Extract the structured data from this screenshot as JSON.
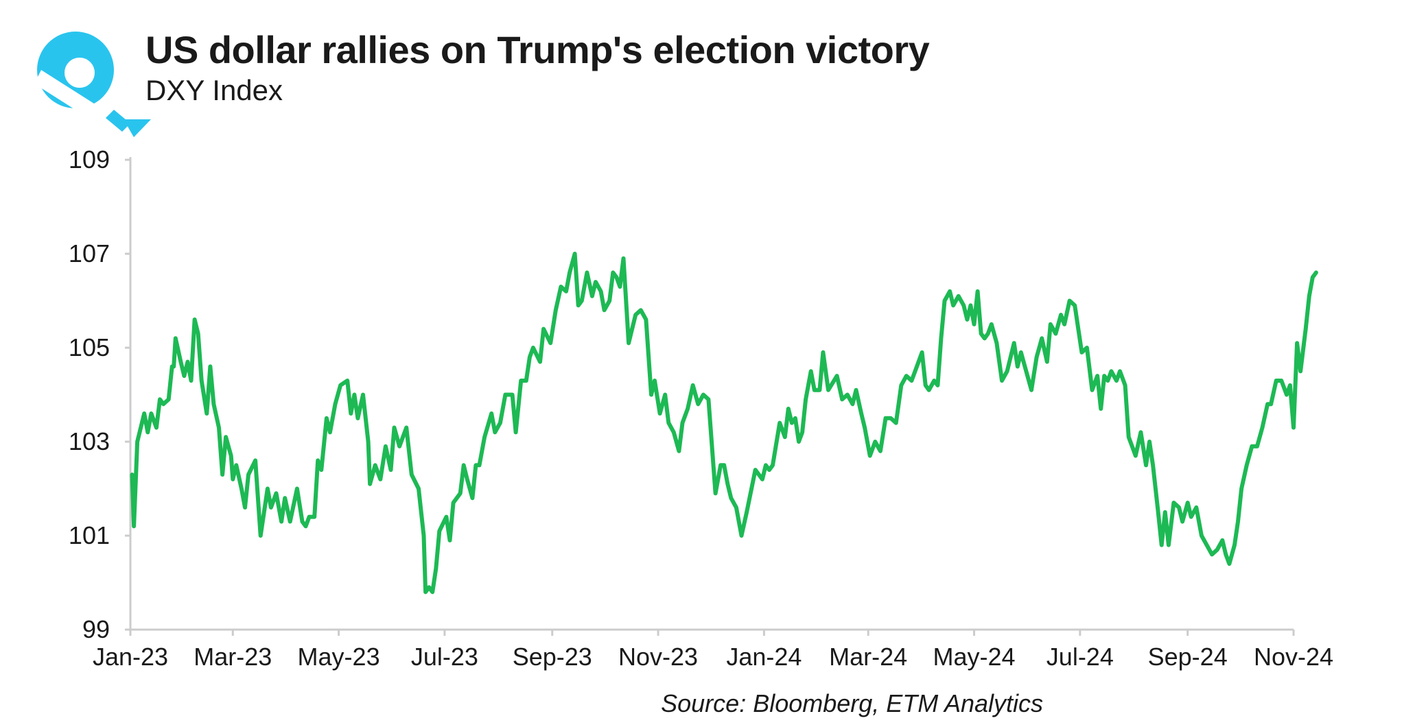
{
  "title": "US dollar rallies on Trump's election victory",
  "subtitle": "DXY Index",
  "source": "Source: Bloomberg, ETM Analytics",
  "colors": {
    "line": "#1db954",
    "axis": "#cccccc",
    "logo": "#29c4ee",
    "text": "#1a1a1a"
  },
  "logo": {
    "icon": "etm-logo-icon"
  },
  "chart_data": {
    "type": "line",
    "title": "US dollar rallies on Trump's election victory",
    "subtitle": "DXY Index",
    "ylabel": "",
    "xlabel": "",
    "ylim": [
      99,
      109
    ],
    "yticks": [
      99,
      101,
      103,
      105,
      107,
      109
    ],
    "xlim": [
      "2023-01-01",
      "2024-11-01"
    ],
    "xticks": [
      "2023-01-01",
      "2023-03-01",
      "2023-05-01",
      "2023-07-01",
      "2023-09-01",
      "2023-11-01",
      "2024-01-01",
      "2024-03-01",
      "2024-05-01",
      "2024-07-01",
      "2024-09-01",
      "2024-11-01"
    ],
    "xtick_labels": [
      "Jan-23",
      "Mar-23",
      "May-23",
      "Jul-23",
      "Sep-23",
      "Nov-23",
      "Jan-24",
      "Mar-24",
      "May-24",
      "Jul-24",
      "Sep-24",
      "Nov-24"
    ],
    "grid": false,
    "legend": "none",
    "series": [
      {
        "color": "#1db954",
        "points": [
          [
            "2023-01-02",
            102.3
          ],
          [
            "2023-01-03",
            101.2
          ],
          [
            "2023-01-05",
            103.0
          ],
          [
            "2023-01-09",
            103.6
          ],
          [
            "2023-01-11",
            103.2
          ],
          [
            "2023-01-13",
            103.6
          ],
          [
            "2023-01-16",
            103.3
          ],
          [
            "2023-01-18",
            103.9
          ],
          [
            "2023-01-20",
            103.8
          ],
          [
            "2023-01-23",
            103.9
          ],
          [
            "2023-01-25",
            104.6
          ],
          [
            "2023-01-26",
            104.6
          ],
          [
            "2023-01-27",
            105.2
          ],
          [
            "2023-01-30",
            104.7
          ],
          [
            "2023-02-01",
            104.4
          ],
          [
            "2023-02-03",
            104.7
          ],
          [
            "2023-02-05",
            104.3
          ],
          [
            "2023-02-07",
            105.6
          ],
          [
            "2023-02-09",
            105.3
          ],
          [
            "2023-02-11",
            104.3
          ],
          [
            "2023-02-14",
            103.6
          ],
          [
            "2023-02-16",
            104.6
          ],
          [
            "2023-02-18",
            103.8
          ],
          [
            "2023-02-21",
            103.3
          ],
          [
            "2023-02-23",
            102.3
          ],
          [
            "2023-02-25",
            103.1
          ],
          [
            "2023-02-28",
            102.7
          ],
          [
            "2023-03-01",
            102.2
          ],
          [
            "2023-03-03",
            102.5
          ],
          [
            "2023-03-06",
            102.0
          ],
          [
            "2023-03-08",
            101.6
          ],
          [
            "2023-03-10",
            102.3
          ],
          [
            "2023-03-14",
            102.6
          ],
          [
            "2023-03-17",
            101.0
          ],
          [
            "2023-03-21",
            102.0
          ],
          [
            "2023-03-23",
            101.6
          ],
          [
            "2023-03-26",
            101.9
          ],
          [
            "2023-03-29",
            101.3
          ],
          [
            "2023-03-31",
            101.8
          ],
          [
            "2023-04-03",
            101.3
          ],
          [
            "2023-04-07",
            102.0
          ],
          [
            "2023-04-10",
            101.3
          ],
          [
            "2023-04-12",
            101.2
          ],
          [
            "2023-04-14",
            101.4
          ],
          [
            "2023-04-17",
            101.4
          ],
          [
            "2023-04-19",
            102.6
          ],
          [
            "2023-04-21",
            102.4
          ],
          [
            "2023-04-24",
            103.5
          ],
          [
            "2023-04-26",
            103.2
          ],
          [
            "2023-04-29",
            103.8
          ],
          [
            "2023-05-02",
            104.2
          ],
          [
            "2023-05-06",
            104.3
          ],
          [
            "2023-05-08",
            103.6
          ],
          [
            "2023-05-10",
            104.0
          ],
          [
            "2023-05-12",
            103.5
          ],
          [
            "2023-05-15",
            104.0
          ],
          [
            "2023-05-18",
            103.0
          ],
          [
            "2023-05-19",
            102.1
          ],
          [
            "2023-05-22",
            102.5
          ],
          [
            "2023-05-25",
            102.2
          ],
          [
            "2023-05-28",
            102.9
          ],
          [
            "2023-05-31",
            102.4
          ],
          [
            "2023-06-02",
            103.3
          ],
          [
            "2023-06-05",
            102.9
          ],
          [
            "2023-06-09",
            103.3
          ],
          [
            "2023-06-12",
            102.3
          ],
          [
            "2023-06-16",
            102.0
          ],
          [
            "2023-06-19",
            101.0
          ],
          [
            "2023-06-20",
            99.8
          ],
          [
            "2023-06-22",
            99.9
          ],
          [
            "2023-06-24",
            99.8
          ],
          [
            "2023-06-26",
            100.3
          ],
          [
            "2023-06-28",
            101.1
          ],
          [
            "2023-07-02",
            101.4
          ],
          [
            "2023-07-04",
            100.9
          ],
          [
            "2023-07-06",
            101.7
          ],
          [
            "2023-07-10",
            101.9
          ],
          [
            "2023-07-12",
            102.5
          ],
          [
            "2023-07-14",
            102.2
          ],
          [
            "2023-07-17",
            101.8
          ],
          [
            "2023-07-19",
            102.5
          ],
          [
            "2023-07-21",
            102.5
          ],
          [
            "2023-07-24",
            103.1
          ],
          [
            "2023-07-28",
            103.6
          ],
          [
            "2023-07-30",
            103.2
          ],
          [
            "2023-08-02",
            103.4
          ],
          [
            "2023-08-05",
            104.0
          ],
          [
            "2023-08-09",
            104.0
          ],
          [
            "2023-08-11",
            103.2
          ],
          [
            "2023-08-14",
            104.3
          ],
          [
            "2023-08-17",
            104.3
          ],
          [
            "2023-08-19",
            104.8
          ],
          [
            "2023-08-21",
            105.0
          ],
          [
            "2023-08-25",
            104.7
          ],
          [
            "2023-08-27",
            105.4
          ],
          [
            "2023-08-31",
            105.1
          ],
          [
            "2023-09-03",
            105.8
          ],
          [
            "2023-09-06",
            106.3
          ],
          [
            "2023-09-09",
            106.2
          ],
          [
            "2023-09-11",
            106.6
          ],
          [
            "2023-09-14",
            107.0
          ],
          [
            "2023-09-16",
            105.9
          ],
          [
            "2023-09-18",
            106.0
          ],
          [
            "2023-09-21",
            106.6
          ],
          [
            "2023-09-24",
            106.1
          ],
          [
            "2023-09-26",
            106.4
          ],
          [
            "2023-09-29",
            106.2
          ],
          [
            "2023-10-01",
            105.8
          ],
          [
            "2023-10-04",
            106.0
          ],
          [
            "2023-10-06",
            106.6
          ],
          [
            "2023-10-08",
            106.5
          ],
          [
            "2023-10-10",
            106.3
          ],
          [
            "2023-10-12",
            106.9
          ],
          [
            "2023-10-15",
            105.1
          ],
          [
            "2023-10-19",
            105.7
          ],
          [
            "2023-10-22",
            105.8
          ],
          [
            "2023-10-25",
            105.6
          ],
          [
            "2023-10-28",
            104.0
          ],
          [
            "2023-10-30",
            104.3
          ],
          [
            "2023-11-02",
            103.6
          ],
          [
            "2023-11-05",
            104.0
          ],
          [
            "2023-11-07",
            103.4
          ],
          [
            "2023-11-10",
            103.2
          ],
          [
            "2023-11-13",
            102.8
          ],
          [
            "2023-11-15",
            103.4
          ],
          [
            "2023-11-18",
            103.7
          ],
          [
            "2023-11-21",
            104.2
          ],
          [
            "2023-11-24",
            103.8
          ],
          [
            "2023-11-27",
            104.0
          ],
          [
            "2023-11-30",
            103.9
          ],
          [
            "2023-12-02",
            102.9
          ],
          [
            "2023-12-04",
            101.9
          ],
          [
            "2023-12-07",
            102.5
          ],
          [
            "2023-12-09",
            102.5
          ],
          [
            "2023-12-11",
            102.1
          ],
          [
            "2023-12-13",
            101.8
          ],
          [
            "2023-12-16",
            101.6
          ],
          [
            "2023-12-19",
            101.0
          ],
          [
            "2023-12-22",
            101.5
          ],
          [
            "2023-12-27",
            102.4
          ],
          [
            "2023-12-31",
            102.2
          ],
          [
            "2024-01-02",
            102.5
          ],
          [
            "2024-01-04",
            102.4
          ],
          [
            "2024-01-06",
            102.5
          ],
          [
            "2024-01-10",
            103.4
          ],
          [
            "2024-01-13",
            103.1
          ],
          [
            "2024-01-15",
            103.7
          ],
          [
            "2024-01-17",
            103.4
          ],
          [
            "2024-01-19",
            103.5
          ],
          [
            "2024-01-21",
            103.0
          ],
          [
            "2024-01-23",
            103.2
          ],
          [
            "2024-01-25",
            103.9
          ],
          [
            "2024-01-28",
            104.5
          ],
          [
            "2024-01-30",
            104.1
          ],
          [
            "2024-02-02",
            104.1
          ],
          [
            "2024-02-04",
            104.9
          ],
          [
            "2024-02-07",
            104.1
          ],
          [
            "2024-02-12",
            104.4
          ],
          [
            "2024-02-15",
            103.9
          ],
          [
            "2024-02-18",
            104.0
          ],
          [
            "2024-02-21",
            103.8
          ],
          [
            "2024-02-23",
            104.1
          ],
          [
            "2024-02-26",
            103.6
          ],
          [
            "2024-02-28",
            103.3
          ],
          [
            "2024-03-02",
            102.7
          ],
          [
            "2024-03-05",
            103.0
          ],
          [
            "2024-03-08",
            102.8
          ],
          [
            "2024-03-11",
            103.5
          ],
          [
            "2024-03-14",
            103.5
          ],
          [
            "2024-03-17",
            103.4
          ],
          [
            "2024-03-20",
            104.2
          ],
          [
            "2024-03-23",
            104.4
          ],
          [
            "2024-03-26",
            104.3
          ],
          [
            "2024-03-28",
            104.5
          ],
          [
            "2024-04-01",
            104.9
          ],
          [
            "2024-04-03",
            104.2
          ],
          [
            "2024-04-05",
            104.1
          ],
          [
            "2024-04-08",
            104.3
          ],
          [
            "2024-04-10",
            104.2
          ],
          [
            "2024-04-12",
            105.2
          ],
          [
            "2024-04-14",
            106.0
          ],
          [
            "2024-04-17",
            106.2
          ],
          [
            "2024-04-19",
            105.9
          ],
          [
            "2024-04-22",
            106.1
          ],
          [
            "2024-04-25",
            105.9
          ],
          [
            "2024-04-27",
            105.6
          ],
          [
            "2024-04-29",
            105.9
          ],
          [
            "2024-05-01",
            105.5
          ],
          [
            "2024-05-03",
            106.2
          ],
          [
            "2024-05-05",
            105.3
          ],
          [
            "2024-05-07",
            105.2
          ],
          [
            "2024-05-09",
            105.3
          ],
          [
            "2024-05-11",
            105.5
          ],
          [
            "2024-05-14",
            105.1
          ],
          [
            "2024-05-17",
            104.3
          ],
          [
            "2024-05-20",
            104.5
          ],
          [
            "2024-05-24",
            105.1
          ],
          [
            "2024-05-26",
            104.6
          ],
          [
            "2024-05-28",
            104.9
          ],
          [
            "2024-05-31",
            104.5
          ],
          [
            "2024-06-03",
            104.1
          ],
          [
            "2024-06-06",
            104.8
          ],
          [
            "2024-06-09",
            105.2
          ],
          [
            "2024-06-12",
            104.7
          ],
          [
            "2024-06-14",
            105.5
          ],
          [
            "2024-06-17",
            105.3
          ],
          [
            "2024-06-20",
            105.7
          ],
          [
            "2024-06-22",
            105.5
          ],
          [
            "2024-06-25",
            106.0
          ],
          [
            "2024-06-28",
            105.9
          ],
          [
            "2024-07-02",
            104.9
          ],
          [
            "2024-07-05",
            105.0
          ],
          [
            "2024-07-08",
            104.1
          ],
          [
            "2024-07-11",
            104.4
          ],
          [
            "2024-07-13",
            103.7
          ],
          [
            "2024-07-15",
            104.4
          ],
          [
            "2024-07-17",
            104.3
          ],
          [
            "2024-07-19",
            104.5
          ],
          [
            "2024-07-22",
            104.3
          ],
          [
            "2024-07-24",
            104.5
          ],
          [
            "2024-07-27",
            104.2
          ],
          [
            "2024-07-29",
            103.1
          ],
          [
            "2024-08-02",
            102.7
          ],
          [
            "2024-08-05",
            103.2
          ],
          [
            "2024-08-08",
            102.5
          ],
          [
            "2024-08-10",
            103.0
          ],
          [
            "2024-08-12",
            102.5
          ],
          [
            "2024-08-15",
            101.5
          ],
          [
            "2024-08-17",
            100.8
          ],
          [
            "2024-08-19",
            101.5
          ],
          [
            "2024-08-21",
            100.8
          ],
          [
            "2024-08-24",
            101.7
          ],
          [
            "2024-08-27",
            101.6
          ],
          [
            "2024-08-29",
            101.3
          ],
          [
            "2024-09-01",
            101.7
          ],
          [
            "2024-09-03",
            101.4
          ],
          [
            "2024-09-06",
            101.6
          ],
          [
            "2024-09-09",
            101.0
          ],
          [
            "2024-09-12",
            100.8
          ],
          [
            "2024-09-15",
            100.6
          ],
          [
            "2024-09-18",
            100.7
          ],
          [
            "2024-09-21",
            100.9
          ],
          [
            "2024-09-23",
            100.6
          ],
          [
            "2024-09-25",
            100.4
          ],
          [
            "2024-09-28",
            100.8
          ],
          [
            "2024-09-30",
            101.3
          ],
          [
            "2024-10-02",
            102.0
          ],
          [
            "2024-10-05",
            102.5
          ],
          [
            "2024-10-08",
            102.9
          ],
          [
            "2024-10-11",
            102.9
          ],
          [
            "2024-10-14",
            103.3
          ],
          [
            "2024-10-17",
            103.8
          ],
          [
            "2024-10-19",
            103.8
          ],
          [
            "2024-10-22",
            104.3
          ],
          [
            "2024-10-25",
            104.3
          ],
          [
            "2024-10-28",
            104.0
          ],
          [
            "2024-10-30",
            104.2
          ],
          [
            "2024-11-01",
            103.3
          ],
          [
            "2024-11-03",
            105.1
          ],
          [
            "2024-11-05",
            104.5
          ],
          [
            "2024-11-08",
            105.4
          ],
          [
            "2024-11-10",
            106.1
          ],
          [
            "2024-11-12",
            106.5
          ],
          [
            "2024-11-14",
            106.6
          ]
        ]
      }
    ]
  }
}
